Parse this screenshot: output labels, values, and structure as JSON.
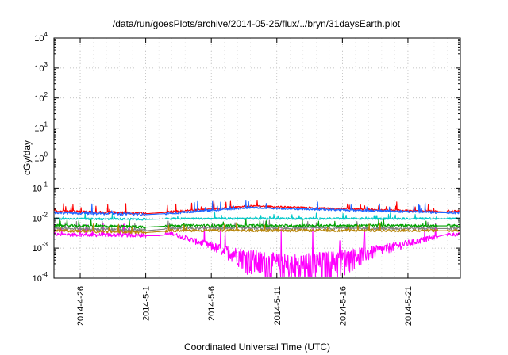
{
  "chart_data": {
    "type": "line",
    "title": "/data/run/goesPlots/archive/2014-05-25/flux/../bryn/31daysEarth.plot",
    "xlabel": "Coordinated Universal Time (UTC)",
    "ylabel": "cGy/day",
    "y_scale": "log",
    "ylim": [
      0.0001,
      10000
    ],
    "xlim": [
      "2014-04-24",
      "2014-05-25"
    ],
    "grid": true,
    "x_ticks": [
      {
        "date": "2014-04-26",
        "label": "2014-4-26"
      },
      {
        "date": "2014-05-01",
        "label": "2014-5-1"
      },
      {
        "date": "2014-05-06",
        "label": "2014-5-6"
      },
      {
        "date": "2014-05-11",
        "label": "2014-5-11"
      },
      {
        "date": "2014-05-16",
        "label": "2014-5-16"
      },
      {
        "date": "2014-05-21",
        "label": "2014-5-21"
      }
    ],
    "y_ticks": [
      {
        "value": 0.0001,
        "base": "10",
        "exp": "-4"
      },
      {
        "value": 0.001,
        "base": "10",
        "exp": "-3"
      },
      {
        "value": 0.01,
        "base": "10",
        "exp": "-2"
      },
      {
        "value": 0.1,
        "base": "10",
        "exp": "-1"
      },
      {
        "value": 1,
        "base": "10",
        "exp": "0"
      },
      {
        "value": 10,
        "base": "10",
        "exp": "1"
      },
      {
        "value": 100,
        "base": "10",
        "exp": "2"
      },
      {
        "value": 1000,
        "base": "10",
        "exp": "3"
      },
      {
        "value": 10000,
        "base": "10",
        "exp": "4"
      }
    ],
    "series": [
      {
        "color": "#ff00ff",
        "baseline": 0.0028,
        "noise": 0.0008,
        "spike": 0.0045,
        "values": [
          [
            "2014-04-24",
            0.0028
          ],
          [
            "2014-05-01",
            0.0026
          ],
          [
            "2014-05-02",
            0.0026
          ],
          [
            "2014-05-03",
            0.003
          ],
          [
            "2014-05-12",
            0.00015
          ],
          [
            "2014-05-24",
            0.0029
          ]
        ]
      },
      {
        "color": "#808080",
        "baseline": 0.0045,
        "noise": 0.001,
        "spike": 0.004,
        "values": [
          [
            "2014-04-24",
            0.0045
          ],
          [
            "2014-05-01",
            0.0038
          ],
          [
            "2014-05-03",
            0.0045
          ],
          [
            "2014-05-24",
            0.0045
          ]
        ]
      },
      {
        "color": "#00a000",
        "baseline": 0.0055,
        "noise": 0.0012,
        "spike": 0.004,
        "values": [
          [
            "2014-04-24",
            0.0055
          ],
          [
            "2014-05-01",
            0.005
          ],
          [
            "2014-05-03",
            0.0055
          ],
          [
            "2014-05-24",
            0.0055
          ]
        ]
      },
      {
        "color": "#b8860b",
        "baseline": 0.0038,
        "noise": 0.0008,
        "spike": 0.003,
        "values": [
          [
            "2014-04-24",
            0.0038
          ],
          [
            "2014-05-01",
            0.0033
          ],
          [
            "2014-05-03",
            0.0038
          ],
          [
            "2014-05-24",
            0.0038
          ]
        ]
      },
      {
        "color": "#00c8c8",
        "baseline": 0.0095,
        "noise": 0.0015,
        "spike": 0.005,
        "values": [
          [
            "2014-04-24",
            0.0095
          ],
          [
            "2014-05-01",
            0.009
          ],
          [
            "2014-05-03",
            0.0095
          ],
          [
            "2014-05-24",
            0.0095
          ]
        ]
      },
      {
        "color": "#ff0000",
        "baseline": 0.016,
        "noise": 0.003,
        "spike": 0.02,
        "values": [
          [
            "2014-04-24",
            0.017
          ],
          [
            "2014-05-01",
            0.014
          ],
          [
            "2014-05-03",
            0.016
          ],
          [
            "2014-05-09",
            0.025
          ],
          [
            "2014-05-24",
            0.016
          ]
        ]
      },
      {
        "color": "#1e64ff",
        "baseline": 0.0145,
        "noise": 0.003,
        "spike": 0.018,
        "values": [
          [
            "2014-04-24",
            0.015
          ],
          [
            "2014-05-01",
            0.013
          ],
          [
            "2014-05-03",
            0.0145
          ],
          [
            "2014-05-09",
            0.022
          ],
          [
            "2014-05-24",
            0.015
          ]
        ]
      }
    ]
  }
}
